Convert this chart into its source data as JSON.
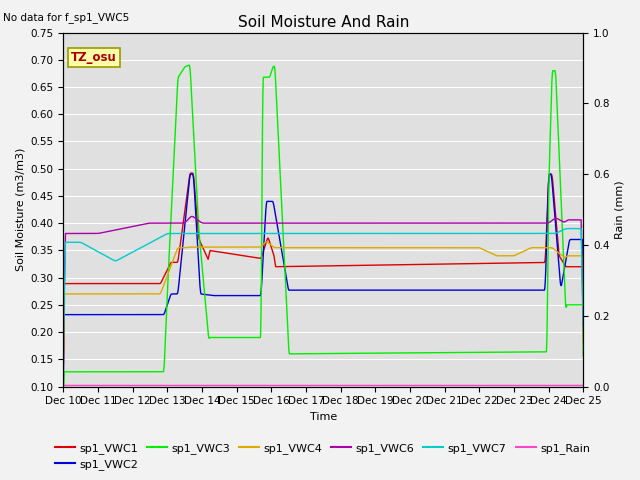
{
  "title": "Soil Moisture And Rain",
  "note": "No data for f_sp1_VWC5",
  "annotation": "TZ_osu",
  "xlabel": "Time",
  "ylabel_left": "Soil Moisture (m3/m3)",
  "ylabel_right": "Rain (mm)",
  "ylim_left": [
    0.1,
    0.75
  ],
  "ylim_right": [
    0.0,
    1.0
  ],
  "background_color": "#e8e8e8",
  "fig_background": "#f0f0f0",
  "legend_entries": [
    "sp1_VWC1",
    "sp1_VWC2",
    "sp1_VWC3",
    "sp1_VWC4",
    "sp1_VWC6",
    "sp1_VWC7",
    "sp1_Rain"
  ],
  "line_colors": {
    "VWC1": "#dd0000",
    "VWC2": "#0000dd",
    "VWC3": "#00ee00",
    "VWC4": "#ddaa00",
    "VWC6": "#aa00aa",
    "VWC7": "#00cccc",
    "Rain": "#ff44cc"
  },
  "x_tick_labels": [
    "Dec 10",
    "Dec 11",
    "Dec 12",
    "Dec 13",
    "Dec 14",
    "Dec 15",
    "Dec 16",
    "Dec 17",
    "Dec 18",
    "Dec 19",
    "Dec 20",
    "Dec 21",
    "Dec 22",
    "Dec 23",
    "Dec 24",
    "Dec 25"
  ],
  "title_fontsize": 11,
  "axis_fontsize": 8,
  "tick_fontsize": 7.5,
  "legend_fontsize": 8
}
